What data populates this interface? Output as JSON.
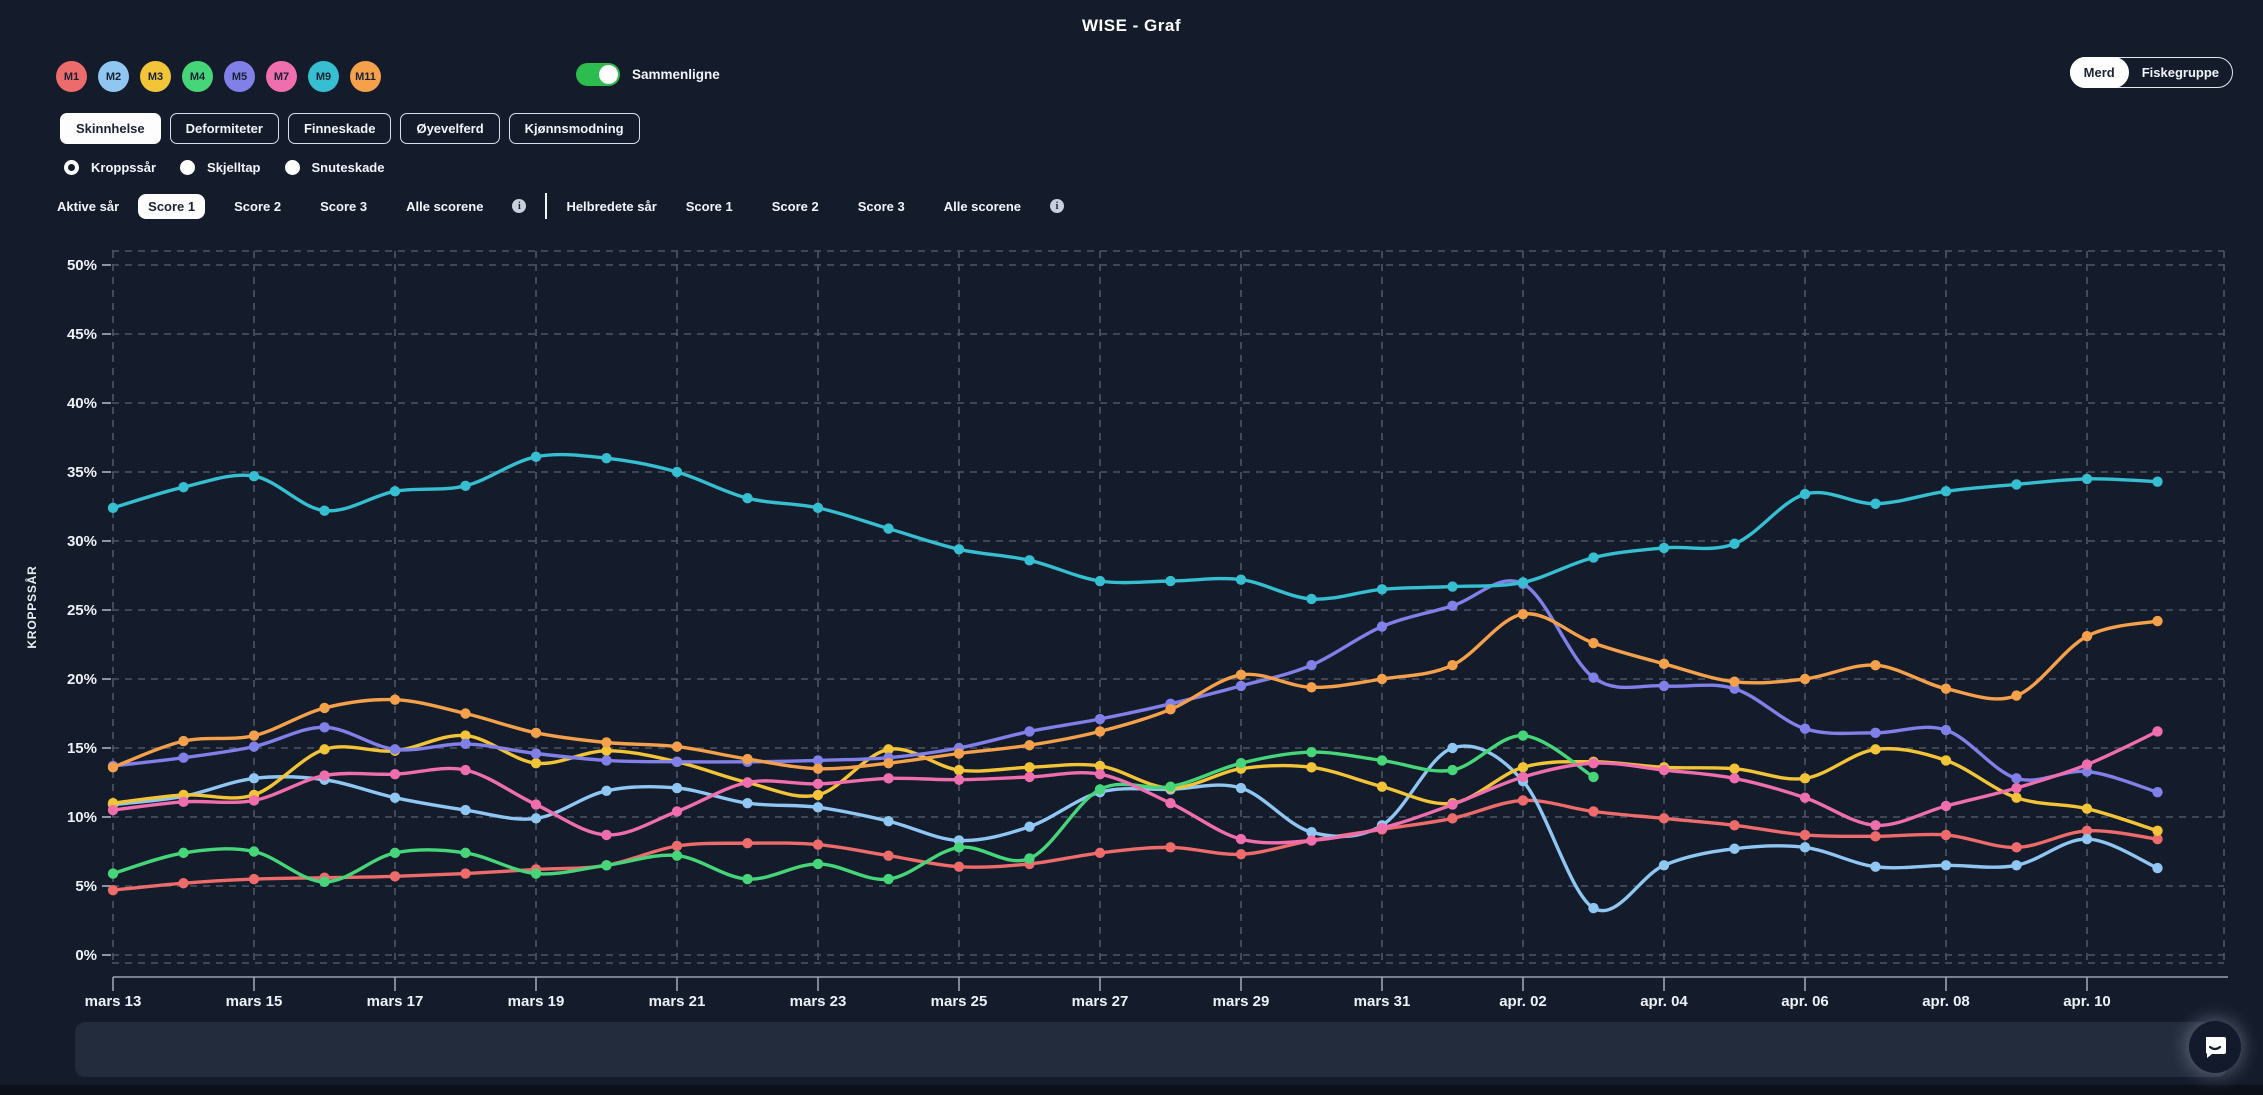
{
  "title": "WISE - Graf",
  "merds": [
    {
      "label": "M1",
      "color": "#ee6b6b"
    },
    {
      "label": "M2",
      "color": "#8fc6f2"
    },
    {
      "label": "M3",
      "color": "#f2c437"
    },
    {
      "label": "M4",
      "color": "#46d679"
    },
    {
      "label": "M5",
      "color": "#8080e8"
    },
    {
      "label": "M7",
      "color": "#ef6ead"
    },
    {
      "label": "M9",
      "color": "#35bfd0"
    },
    {
      "label": "M11",
      "color": "#f5a14c"
    }
  ],
  "compare_toggle": {
    "label": "Sammenligne",
    "on": true,
    "on_color": "#2dbd4f"
  },
  "view_toggle": {
    "options": [
      "Merd",
      "Fiskegruppe"
    ],
    "selected": "Merd"
  },
  "tabs": [
    {
      "label": "Skinnhelse",
      "selected": true
    },
    {
      "label": "Deformiteter",
      "selected": false
    },
    {
      "label": "Finneskade",
      "selected": false
    },
    {
      "label": "Øyevelferd",
      "selected": false
    },
    {
      "label": "Kjønnsmodning",
      "selected": false
    }
  ],
  "radios": [
    {
      "label": "Kroppssår",
      "selected": true
    },
    {
      "label": "Skjelltap",
      "selected": false
    },
    {
      "label": "Snuteskade",
      "selected": false
    }
  ],
  "score_filters": [
    {
      "title": "Aktive sår",
      "options": [
        "Score 1",
        "Score 2",
        "Score 3",
        "Alle scorene"
      ],
      "selected": "Score 1",
      "info": "i"
    },
    {
      "title": "Helbredete sår",
      "options": [
        "Score 1",
        "Score 2",
        "Score 3",
        "Alle scorene"
      ],
      "selected": null,
      "info": "i"
    }
  ],
  "chart_data": {
    "type": "line",
    "title": "",
    "ylabel": "KROPPSSÅR",
    "unit": "%",
    "ylim": [
      0,
      50
    ],
    "ytick_step": 5,
    "grid": "dashed",
    "legend_position": "none (merd badges act as legend)",
    "tick_label_every": 2,
    "categories": [
      "mars 13",
      "mars 14",
      "mars 15",
      "mars 16",
      "mars 17",
      "mars 18",
      "mars 19",
      "mars 20",
      "mars 21",
      "mars 22",
      "mars 23",
      "mars 24",
      "mars 25",
      "mars 26",
      "mars 27",
      "mars 28",
      "mars 29",
      "mars 30",
      "mars 31",
      "apr. 01",
      "apr. 02",
      "apr. 03",
      "apr. 04",
      "apr. 05",
      "apr. 06",
      "apr. 07",
      "apr. 08",
      "apr. 09",
      "apr. 10",
      "apr. 11"
    ],
    "series": [
      {
        "name": "M1",
        "color": "#ee6b6b",
        "values": [
          4.7,
          5.2,
          5.5,
          5.6,
          5.7,
          5.9,
          6.2,
          6.5,
          7.9,
          8.1,
          8.0,
          7.2,
          6.4,
          6.6,
          7.4,
          7.8,
          7.3,
          8.3,
          9.1,
          9.9,
          11.2,
          10.4,
          9.9,
          9.4,
          8.7,
          8.6,
          8.7,
          7.8,
          9.0,
          8.4
        ]
      },
      {
        "name": "M2",
        "color": "#8fc6f2",
        "values": [
          10.9,
          11.5,
          12.8,
          12.7,
          11.4,
          10.5,
          9.9,
          11.9,
          12.1,
          11.0,
          10.7,
          9.7,
          8.3,
          9.3,
          11.8,
          12.0,
          12.1,
          8.9,
          9.4,
          15.0,
          12.6,
          3.4,
          6.5,
          7.7,
          7.8,
          6.4,
          6.5,
          6.5,
          8.4,
          6.3
        ]
      },
      {
        "name": "M3",
        "color": "#f2c437",
        "values": [
          11.0,
          11.6,
          11.6,
          14.9,
          14.8,
          15.9,
          13.9,
          14.8,
          14.0,
          12.5,
          11.6,
          14.9,
          13.4,
          13.6,
          13.7,
          12.1,
          13.5,
          13.6,
          12.2,
          11.0,
          13.6,
          14.0,
          13.6,
          13.5,
          12.8,
          14.9,
          14.1,
          11.4,
          10.6,
          9.0
        ]
      },
      {
        "name": "M4",
        "color": "#46d679",
        "values": [
          5.9,
          7.4,
          7.5,
          5.3,
          7.4,
          7.4,
          5.9,
          6.5,
          7.2,
          5.5,
          6.6,
          5.5,
          7.8,
          7.0,
          12.0,
          12.2,
          13.9,
          14.7,
          14.1,
          13.4,
          15.9,
          12.9,
          null,
          null,
          null,
          null,
          null,
          null,
          null,
          null
        ]
      },
      {
        "name": "M5",
        "color": "#8080e8",
        "values": [
          13.7,
          14.3,
          15.1,
          16.5,
          14.9,
          15.3,
          14.6,
          14.1,
          14.0,
          14.0,
          14.1,
          14.3,
          15.0,
          16.2,
          17.1,
          18.2,
          19.5,
          21.0,
          23.8,
          25.3,
          26.9,
          20.1,
          19.5,
          19.3,
          16.4,
          16.1,
          16.3,
          12.8,
          13.3,
          11.8
        ]
      },
      {
        "name": "M7",
        "color": "#ef6ead",
        "values": [
          10.5,
          11.1,
          11.2,
          13.0,
          13.1,
          13.4,
          10.9,
          8.7,
          10.4,
          12.5,
          12.4,
          12.8,
          12.7,
          12.9,
          13.1,
          11.0,
          8.4,
          8.3,
          9.2,
          10.9,
          12.9,
          13.9,
          13.4,
          12.8,
          11.4,
          9.4,
          10.8,
          12.1,
          13.8,
          16.2
        ]
      },
      {
        "name": "M9",
        "color": "#35bfd0",
        "values": [
          32.4,
          33.9,
          34.7,
          32.2,
          33.6,
          34.0,
          36.1,
          36.0,
          35.0,
          33.1,
          32.4,
          30.9,
          29.4,
          28.6,
          27.1,
          27.1,
          27.2,
          25.8,
          26.5,
          26.7,
          27.0,
          28.8,
          29.5,
          29.8,
          33.4,
          32.7,
          33.6,
          34.1,
          34.5,
          34.3
        ]
      },
      {
        "name": "M11",
        "color": "#f5a14c",
        "values": [
          13.6,
          15.5,
          15.9,
          17.9,
          18.5,
          17.5,
          16.1,
          15.4,
          15.1,
          14.2,
          13.5,
          13.9,
          14.6,
          15.2,
          16.2,
          17.8,
          20.3,
          19.4,
          20.0,
          21.0,
          24.7,
          22.6,
          21.1,
          19.8,
          20.0,
          21.0,
          19.3,
          18.8,
          23.1,
          24.2
        ]
      }
    ]
  },
  "footer": {
    "chat_icon": "chat-bubble"
  }
}
